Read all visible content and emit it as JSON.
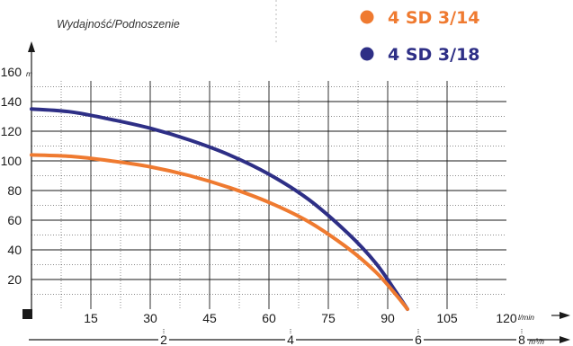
{
  "chart_data": {
    "type": "line",
    "title": "Wydajność/Podnoszenie",
    "ylabel": "m",
    "xlabel": "l/min",
    "xlabel_secondary": "m³/h",
    "ylim": [
      0,
      160
    ],
    "xlim": [
      0,
      120
    ],
    "yticks": [
      "20",
      "40",
      "60",
      "80",
      "100",
      "120",
      "140",
      "160"
    ],
    "xticks": [
      "15",
      "30",
      "45",
      "60",
      "75",
      "90",
      "105",
      "120"
    ],
    "xticks_secondary": [
      "2",
      "4",
      "6",
      "8"
    ],
    "grid": true,
    "legend_position": "top-right",
    "series": [
      {
        "name": "4 SD 3/14",
        "color": "#ef7a30",
        "x": [
          0,
          10,
          20,
          30,
          40,
          50,
          60,
          70,
          80,
          87,
          92,
          95
        ],
        "y": [
          104,
          103,
          100,
          96,
          90,
          82,
          72,
          59,
          41,
          25,
          10,
          0
        ]
      },
      {
        "name": "4 SD 3/18",
        "color": "#2e2f86",
        "x": [
          0,
          10,
          20,
          30,
          40,
          50,
          60,
          70,
          80,
          87,
          92,
          95
        ],
        "y": [
          135,
          133,
          128,
          122,
          114,
          104,
          91,
          74,
          51,
          31,
          12,
          0
        ]
      }
    ]
  }
}
